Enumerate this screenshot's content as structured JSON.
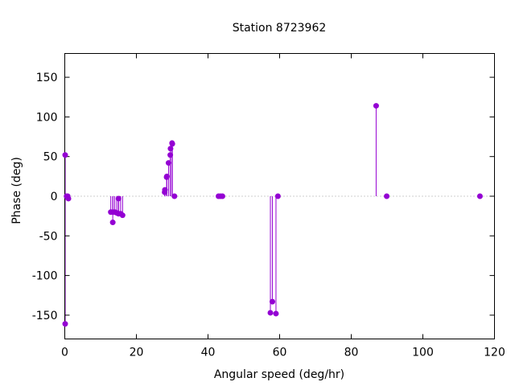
{
  "chart_data": {
    "type": "scatter",
    "title": "Station 8723962",
    "xlabel": "Angular speed (deg/hr)",
    "ylabel": "Phase (deg)",
    "xlim": [
      0,
      120
    ],
    "ylim": [
      -180,
      180
    ],
    "x_ticks": [
      0,
      20,
      40,
      60,
      80,
      100,
      120
    ],
    "y_ticks": [
      -150,
      -100,
      -50,
      0,
      50,
      100,
      150
    ],
    "grid": false,
    "legend": "none",
    "zero_line": true,
    "style": "impulses with points",
    "color": "#9400d3",
    "series": [
      {
        "points": [
          [
            0.04,
            52
          ],
          [
            0.08,
            -161
          ],
          [
            0.5,
            0
          ],
          [
            0.82,
            0
          ],
          [
            1.02,
            -3
          ],
          [
            12.85,
            -20
          ],
          [
            13.4,
            -33
          ],
          [
            13.47,
            -20
          ],
          [
            13.94,
            -20
          ],
          [
            14.5,
            -21
          ],
          [
            14.96,
            -22
          ],
          [
            15.0,
            -3
          ],
          [
            15.04,
            -22
          ],
          [
            15.59,
            -22
          ],
          [
            16.14,
            -24
          ],
          [
            27.9,
            5
          ],
          [
            27.97,
            8
          ],
          [
            28.44,
            24
          ],
          [
            28.51,
            25
          ],
          [
            28.98,
            42
          ],
          [
            29.46,
            52
          ],
          [
            29.53,
            60
          ],
          [
            29.96,
            67
          ],
          [
            30.04,
            66
          ],
          [
            30.63,
            0
          ],
          [
            42.93,
            0
          ],
          [
            43.48,
            0
          ],
          [
            44.03,
            0
          ],
          [
            57.42,
            -147
          ],
          [
            57.97,
            -133
          ],
          [
            58.98,
            -148
          ],
          [
            59.52,
            0
          ],
          [
            86.95,
            114
          ],
          [
            89.9,
            0
          ],
          [
            115.94,
            0
          ]
        ]
      }
    ]
  }
}
